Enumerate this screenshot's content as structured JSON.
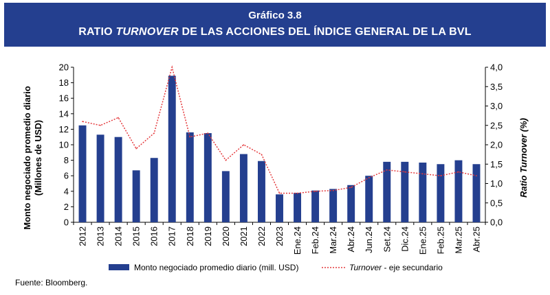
{
  "header": {
    "title": "Gráfico 3.8",
    "subtitle_pre": "RATIO ",
    "subtitle_italic": "TURNOVER",
    "subtitle_post": " DE LAS ACCIONES DEL ÍNDICE GENERAL DE LA BVL",
    "background_color": "#243f8f"
  },
  "source": "Fuente: Bloomberg.",
  "chart_data": {
    "type": "bar",
    "categories": [
      "2012",
      "2013",
      "2014",
      "2015",
      "2016",
      "2017",
      "2018",
      "2019",
      "2020",
      "2021",
      "2022",
      "2023",
      "Ene.24",
      "Feb.24",
      "Mar.24",
      "Abr.24",
      "Jun.24",
      "Set.24",
      "Dic.24",
      "Ene.25",
      "Feb.25",
      "Mar.25",
      "Abr.25"
    ],
    "series": [
      {
        "name": "Monto negociado promedio diario (mill. USD)",
        "kind": "bar",
        "axis": "left",
        "color": "#243f8f",
        "values": [
          12.5,
          11.3,
          11.0,
          6.7,
          8.3,
          18.9,
          11.6,
          11.5,
          6.6,
          8.8,
          7.9,
          3.6,
          3.8,
          4.1,
          4.3,
          4.8,
          6.0,
          7.8,
          7.8,
          7.7,
          7.5,
          8.0,
          7.5
        ]
      },
      {
        "name": "Turnover",
        "kind": "line",
        "axis": "right",
        "color": "#e4393c",
        "style": "dotted",
        "values": [
          2.6,
          2.5,
          2.7,
          1.9,
          2.3,
          4.0,
          2.2,
          2.3,
          1.6,
          2.0,
          1.75,
          0.75,
          0.75,
          0.8,
          0.82,
          0.9,
          1.15,
          1.35,
          1.3,
          1.25,
          1.2,
          1.3,
          1.2
        ]
      }
    ],
    "legend": {
      "bar_label": "Monto negociado promedio diario (mill. USD)",
      "line_label_italic": "Turnover",
      "line_label_rest": " - eje secundario",
      "position": "bottom"
    },
    "ylabel_left_line1": "Monto negociado promedio diario",
    "ylabel_left_line2": "(Millones de USD)",
    "ylabel_right_pre": "Ratio ",
    "ylabel_right_italic": "Turnover",
    "ylabel_right_post": " (%)",
    "ylim_left": [
      0,
      20
    ],
    "ylim_right": [
      0,
      4
    ],
    "yticks_left": [
      "0",
      "2",
      "4",
      "6",
      "8",
      "10",
      "12",
      "14",
      "16",
      "18",
      "20"
    ],
    "yticks_right": [
      "0,0",
      "0,5",
      "1,0",
      "1,5",
      "2,0",
      "2,5",
      "3,0",
      "3,5",
      "4,0"
    ],
    "grid": false
  }
}
